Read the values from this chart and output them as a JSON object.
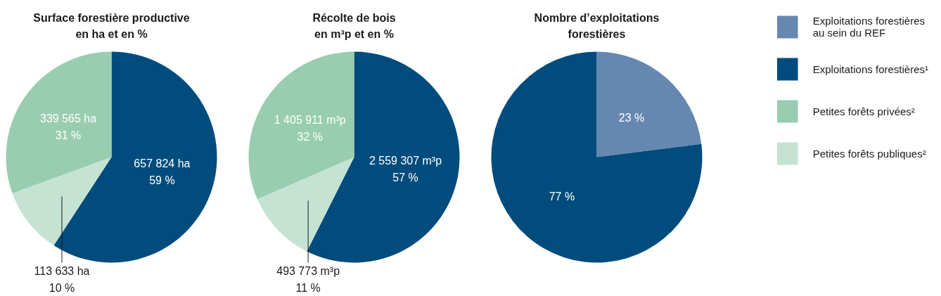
{
  "chart_data": [
    {
      "type": "pie",
      "title": "Surface forestière productive\nen ha et en %",
      "categories": [
        null,
        null,
        null
      ],
      "values": [
        657824,
        113633,
        339565
      ],
      "colors": [
        "#004c7c",
        "#c5e3d3",
        "#99cdb0"
      ],
      "value_labels": [
        "657 824 ha\n59 %",
        "113 633 ha\n10 %",
        "339 565 ha\n31 %"
      ]
    },
    {
      "type": "pie",
      "title": "Récolte de bois\nen m³p et en %",
      "categories": [
        null,
        null,
        null
      ],
      "values": [
        2559307,
        493773,
        1405911
      ],
      "colors": [
        "#004c7c",
        "#c5e3d3",
        "#99cdb0"
      ],
      "value_labels": [
        "2 559 307 m³p\n57 %",
        "493 773 m³p\n11 %",
        "1 405 911 m³p\n32 %"
      ]
    },
    {
      "type": "pie",
      "title": "Nombre d’exploitations\nforestières",
      "categories": [
        "Exploitations forestières\nau sein du REF",
        "Exploitations forestières¹",
        "Petites forêts privées²",
        "Petites forêts publiques²"
      ],
      "values": [
        23,
        77,
        null,
        null
      ],
      "colors": [
        "#6688b0",
        "#004c7c",
        "#99cdb0",
        "#c5e3d3"
      ],
      "value_labels": [
        "23 %",
        "77 %",
        null,
        null
      ],
      "legend": "right"
    }
  ]
}
